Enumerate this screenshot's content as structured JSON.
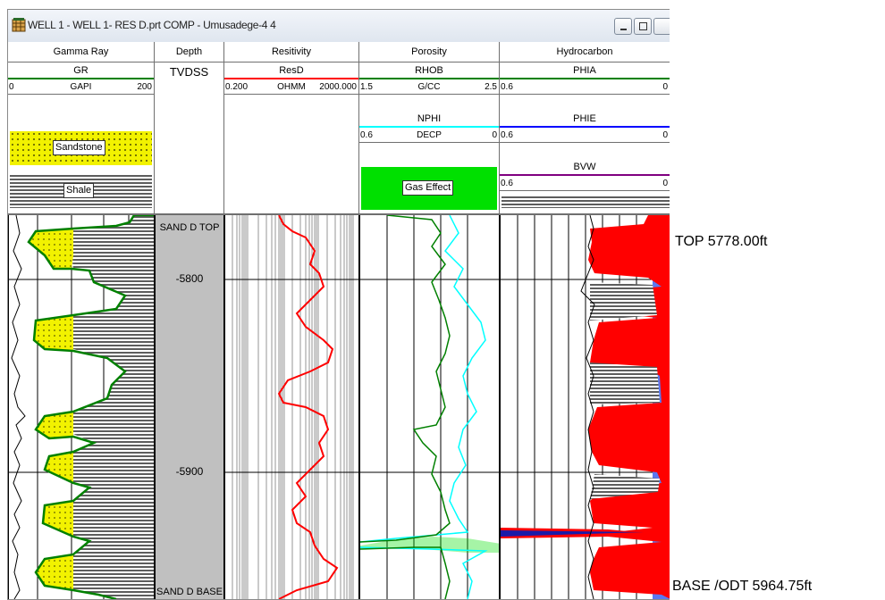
{
  "window": {
    "title": "WELL 1 - WELL 1- RES D.prt  COMP - Umusadege-4 4",
    "icon": "grid-app-icon"
  },
  "tracks": {
    "gamma_ray": {
      "title": "Gamma Ray",
      "curve": "GR",
      "unit": "GAPI",
      "min": "0",
      "max": "200",
      "curve_color": "#008000",
      "sandstone_label": "Sandstone",
      "shale_label": "Shale"
    },
    "depth": {
      "title": "Depth",
      "curve": "TVDSS",
      "top_marker": "SAND D TOP",
      "base_marker": "SAND D BASE",
      "ticks": [
        "-5800",
        "-5900"
      ]
    },
    "resistivity": {
      "title": "Resitivity",
      "curve": "ResD",
      "unit": "OHMM",
      "min": "0.200",
      "max": "2000.000",
      "curve_color": "#ff0000"
    },
    "porosity": {
      "title": "Porosity",
      "curve1": "RHOB",
      "unit1": "G/CC",
      "min1": "1.5",
      "max1": "2.5",
      "curve2": "NPHI",
      "unit2": "DECP",
      "min2": "0.6",
      "max2": "0",
      "gas_label": "Gas Effect",
      "rhob_color": "#008000",
      "nphi_color": "#00ffff",
      "gas_color": "#00e000"
    },
    "hydrocarbon": {
      "title": "Hydrocarbon",
      "curve1": "PHIA",
      "min1": "0.6",
      "max1": "0",
      "curve2": "PHIE",
      "min2": "0.6",
      "max2": "0",
      "curve3": "BVW",
      "min3": "0.6",
      "max3": "0",
      "hc_color": "#ff0000",
      "water_color": "#5b78f0"
    }
  },
  "annotations": {
    "top": "TOP 5778.00ft",
    "base": "BASE /ODT 5964.75ft"
  }
}
